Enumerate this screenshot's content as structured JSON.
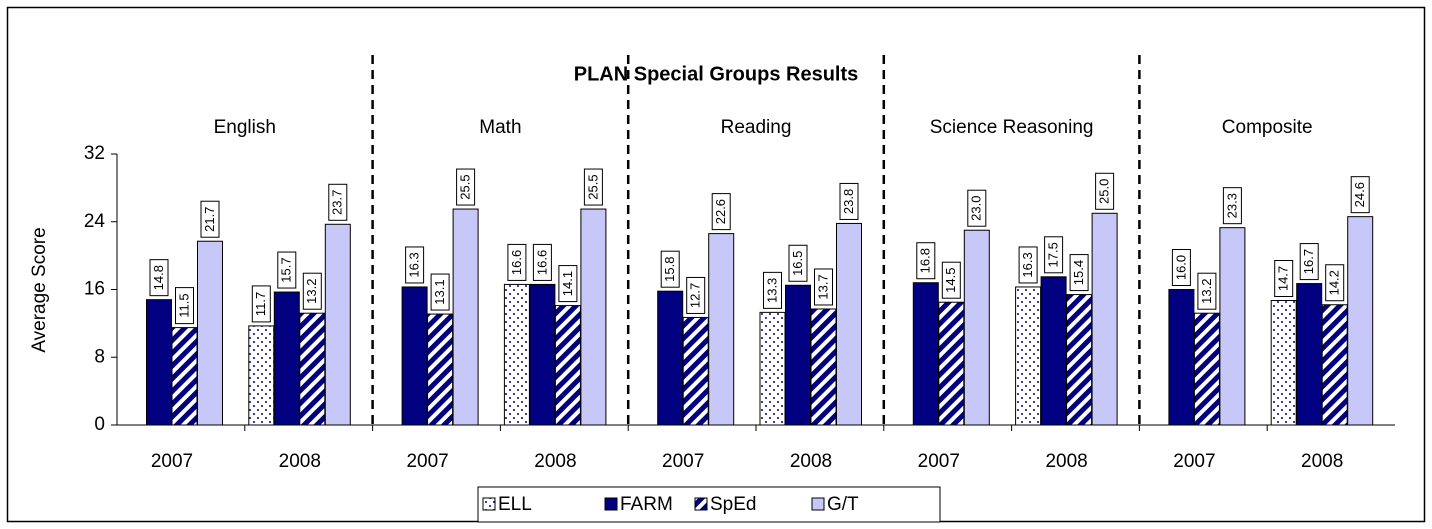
{
  "chart_data": {
    "type": "bar",
    "title": "PLAN Special Groups Results",
    "y_label": "Average Score",
    "groups": [
      "English",
      "Math",
      "Reading",
      "Science Reasoning",
      "Composite"
    ],
    "categories": [
      "2007",
      "2008",
      "2007",
      "2008",
      "2007",
      "2008",
      "2007",
      "2008",
      "2007",
      "2008"
    ],
    "series": [
      {
        "name": "ELL",
        "color": "#000080",
        "pattern": "dots",
        "values": [
          null,
          11.7,
          null,
          16.6,
          null,
          13.3,
          null,
          16.3,
          null,
          14.7
        ],
        "value_labels": [
          null,
          "11.7",
          null,
          "16.6",
          null,
          "13.3",
          null,
          "16.3",
          null,
          "14.7"
        ]
      },
      {
        "name": "FARM",
        "color": "#000080",
        "pattern": "solid",
        "values": [
          14.8,
          15.7,
          16.3,
          16.6,
          15.8,
          16.5,
          16.8,
          17.5,
          16.0,
          16.7
        ],
        "value_labels": [
          "14.8",
          "15.7",
          "16.3",
          "16.6",
          "15.8",
          "16.5",
          "16.8",
          "17.5",
          "16.0",
          "16.7"
        ]
      },
      {
        "name": "SpEd",
        "color": "#000080",
        "pattern": "stripes",
        "values": [
          11.5,
          13.2,
          13.1,
          14.1,
          12.7,
          13.7,
          14.5,
          15.4,
          13.2,
          14.2
        ],
        "value_labels": [
          "11.5",
          "13.2",
          "13.1",
          "14.1",
          "12.7",
          "13.7",
          "14.5",
          "15.4",
          "13.2",
          "14.2"
        ]
      },
      {
        "name": "G/T",
        "color": "#c8c8f8",
        "pattern": "solid",
        "values": [
          21.7,
          23.7,
          25.5,
          25.5,
          22.6,
          23.8,
          23.0,
          25.0,
          23.3,
          24.6
        ],
        "value_labels": [
          "21.7",
          "23.7",
          "25.5",
          "25.5",
          "22.6",
          "23.8",
          "23.0",
          "25.0",
          "23.3",
          "24.6"
        ]
      }
    ],
    "ylim": [
      0,
      32
    ],
    "yticks": [
      0,
      8,
      16,
      24,
      32
    ],
    "grid": false,
    "legend": "bottom"
  }
}
